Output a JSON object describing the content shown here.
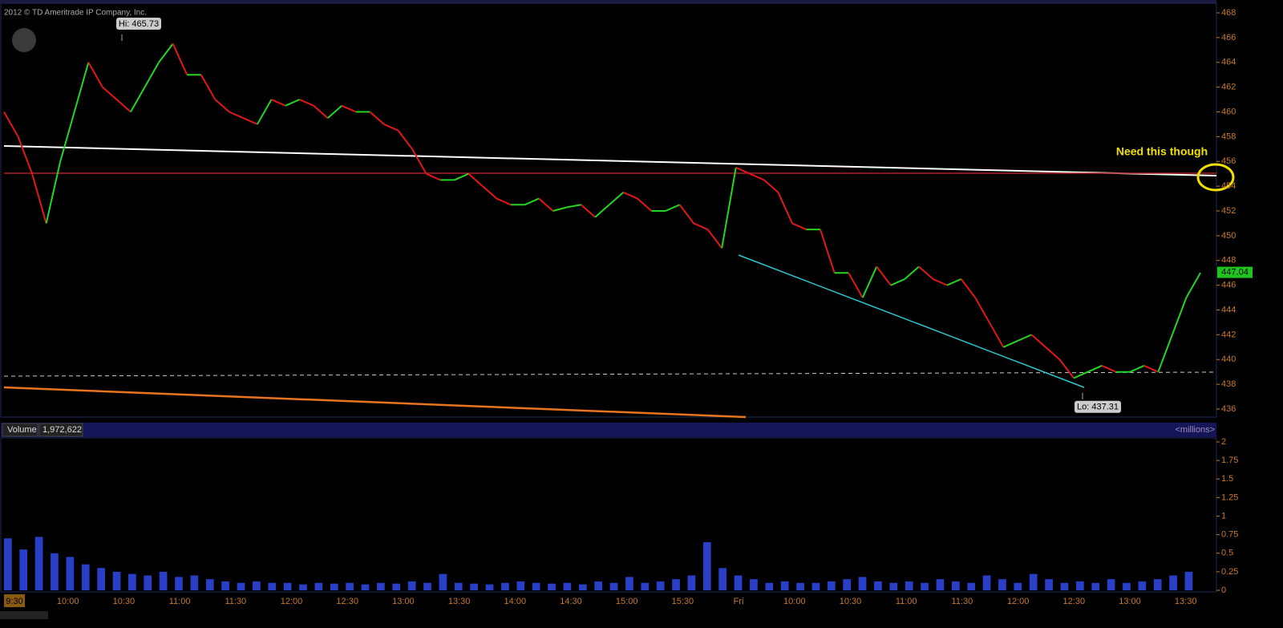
{
  "header": {
    "copyright": "2012 © TD Ameritrade IP Company, Inc."
  },
  "price_chart": {
    "ylim": [
      436,
      468
    ],
    "yticks": [
      436,
      438,
      440,
      442,
      444,
      446,
      448,
      450,
      452,
      454,
      456,
      458,
      460,
      462,
      464,
      466,
      468
    ],
    "high": {
      "value": 465.73,
      "label": "Hi: 465.73"
    },
    "low": {
      "value": 437.31,
      "label": "Lo: 437.31"
    },
    "last": {
      "value": 447.04,
      "label": "447.04"
    },
    "annotation": "Need this though",
    "values": [
      460,
      458,
      455,
      451,
      456,
      460,
      464,
      462,
      461,
      460,
      462,
      464,
      465.5,
      463,
      463,
      461,
      460,
      459.5,
      459,
      461,
      460.5,
      461,
      460.5,
      459.5,
      460.5,
      460,
      460,
      459,
      458.5,
      457,
      455,
      454.5,
      454.5,
      455,
      454,
      453,
      452.5,
      452.5,
      453,
      452,
      452.3,
      452.5,
      451.5,
      452.5,
      453.5,
      453,
      452,
      452,
      452.5,
      451,
      450.5,
      449,
      455.5,
      455,
      454.5,
      453.5,
      451,
      450.5,
      450.5,
      447,
      447,
      445,
      447.5,
      446,
      446.5,
      447.5,
      446.5,
      446,
      446.5,
      445,
      443,
      441,
      441.5,
      442,
      441,
      440,
      438.5,
      439,
      439.5,
      439,
      439,
      439.5,
      439,
      442,
      445,
      447
    ]
  },
  "volume_chart": {
    "title": "Volume",
    "total": "1,972,622",
    "units": "<millions>",
    "ylim": [
      0,
      2
    ],
    "yticks": [
      0,
      0.25,
      0.5,
      0.75,
      1,
      1.25,
      1.5,
      1.75,
      2
    ],
    "values": [
      0.7,
      0.55,
      0.72,
      0.5,
      0.45,
      0.35,
      0.3,
      0.25,
      0.22,
      0.2,
      0.25,
      0.18,
      0.2,
      0.15,
      0.12,
      0.1,
      0.12,
      0.1,
      0.1,
      0.08,
      0.1,
      0.09,
      0.1,
      0.08,
      0.1,
      0.09,
      0.12,
      0.1,
      0.22,
      0.1,
      0.09,
      0.08,
      0.1,
      0.12,
      0.1,
      0.09,
      0.1,
      0.08,
      0.12,
      0.1,
      0.18,
      0.1,
      0.12,
      0.15,
      0.2,
      0.65,
      0.3,
      0.2,
      0.15,
      0.1,
      0.12,
      0.1,
      0.1,
      0.12,
      0.15,
      0.18,
      0.12,
      0.1,
      0.12,
      0.1,
      0.15,
      0.12,
      0.1,
      0.2,
      0.15,
      0.1,
      0.22,
      0.15,
      0.1,
      0.12,
      0.1,
      0.15,
      0.1,
      0.12,
      0.15,
      0.2,
      0.25
    ]
  },
  "time_axis": {
    "labels": [
      "9:30",
      "10:00",
      "10:30",
      "11:00",
      "11:30",
      "12:00",
      "12:30",
      "13:00",
      "13:30",
      "14:00",
      "14:30",
      "15:00",
      "15:30",
      "Fri",
      "10:00",
      "10:30",
      "11:00",
      "11:30",
      "12:00",
      "12:30",
      "13:00",
      "13:30"
    ]
  }
}
